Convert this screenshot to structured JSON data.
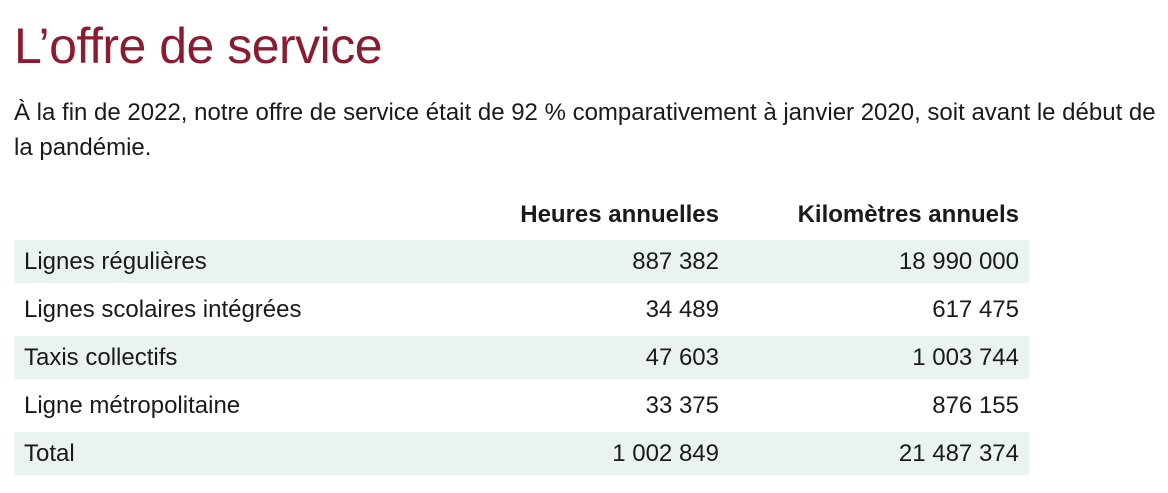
{
  "title": "L’offre de service",
  "intro": "À la fin de 2022, notre offre de service était de 92 % comparativement à janvier 2020, soit avant le début de la pandémie.",
  "table": {
    "columns": [
      "",
      "Heures annuelles",
      "Kilomètres annuels"
    ],
    "rows": [
      {
        "label": "Lignes régulières",
        "hours": "887 382",
        "km": "18 990 000"
      },
      {
        "label": "Lignes scolaires intégrées",
        "hours": "34 489",
        "km": "617 475"
      },
      {
        "label": "Taxis collectifs",
        "hours": "47 603",
        "km": "1 003 744"
      },
      {
        "label": "Ligne métropolitaine",
        "hours": "33 375",
        "km": "876 155"
      },
      {
        "label": "Total",
        "hours": "1 002 849",
        "km": "21 487 374"
      }
    ]
  },
  "colors": {
    "title": "#8a1c32",
    "row_shade": "#eaf3f1",
    "text": "#1a1a1a"
  }
}
